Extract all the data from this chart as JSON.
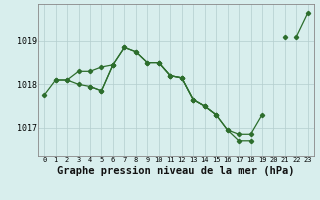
{
  "x": [
    0,
    1,
    2,
    3,
    4,
    5,
    6,
    7,
    8,
    9,
    10,
    11,
    12,
    13,
    14,
    15,
    16,
    17,
    18,
    19,
    20,
    21,
    22,
    23
  ],
  "line1": [
    null,
    1018.1,
    1018.1,
    1018.3,
    1018.3,
    1018.4,
    1018.45,
    1018.85,
    1018.75,
    1018.5,
    1018.5,
    1018.2,
    1018.15,
    1017.65,
    1017.5,
    1017.3,
    null,
    null,
    null,
    null,
    null,
    null,
    1019.1,
    1019.65
  ],
  "line2": [
    1017.75,
    1018.1,
    1018.1,
    1018.0,
    1017.95,
    1017.85,
    1018.45,
    null,
    null,
    null,
    null,
    null,
    null,
    null,
    null,
    null,
    null,
    null,
    null,
    null,
    null,
    null,
    null,
    null
  ],
  "line3": [
    null,
    null,
    null,
    null,
    1017.95,
    1017.85,
    1018.45,
    1018.85,
    1018.75,
    1018.5,
    1018.5,
    1018.2,
    1018.15,
    1017.65,
    1017.5,
    1017.3,
    1016.95,
    1016.85,
    1016.85,
    1017.3,
    null,
    1019.1,
    null,
    null
  ],
  "line4": [
    null,
    null,
    null,
    null,
    null,
    null,
    null,
    null,
    null,
    null,
    1018.5,
    1018.2,
    1018.15,
    1017.65,
    1017.5,
    1017.3,
    1016.95,
    1016.7,
    1016.7,
    null,
    null,
    null,
    null,
    null
  ],
  "xlim": [
    -0.5,
    23.5
  ],
  "ylim": [
    1016.35,
    1019.85
  ],
  "yticks": [
    1017,
    1018,
    1019
  ],
  "xticks": [
    0,
    1,
    2,
    3,
    4,
    5,
    6,
    7,
    8,
    9,
    10,
    11,
    12,
    13,
    14,
    15,
    16,
    17,
    18,
    19,
    20,
    21,
    22,
    23
  ],
  "bg_color": "#d8eeed",
  "grid_color": "#b4cece",
  "line_color": "#2d6e2d",
  "title": "Graphe pression niveau de la mer (hPa)",
  "title_fontsize": 7.5,
  "marker": "D",
  "markersize": 2.2,
  "linewidth": 0.9
}
